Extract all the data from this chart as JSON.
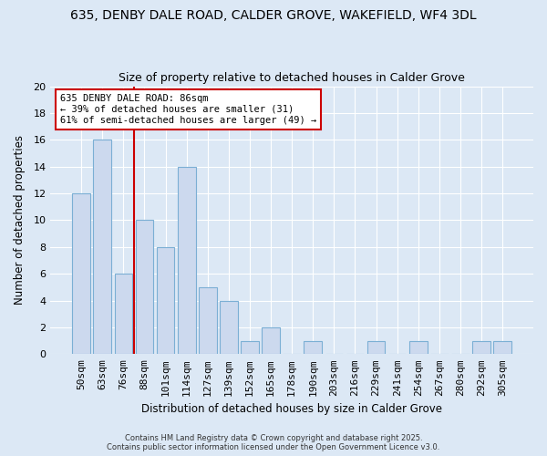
{
  "title": "635, DENBY DALE ROAD, CALDER GROVE, WAKEFIELD, WF4 3DL",
  "subtitle": "Size of property relative to detached houses in Calder Grove",
  "xlabel": "Distribution of detached houses by size in Calder Grove",
  "ylabel": "Number of detached properties",
  "categories": [
    "50sqm",
    "63sqm",
    "76sqm",
    "88sqm",
    "101sqm",
    "114sqm",
    "127sqm",
    "139sqm",
    "152sqm",
    "165sqm",
    "178sqm",
    "190sqm",
    "203sqm",
    "216sqm",
    "229sqm",
    "241sqm",
    "254sqm",
    "267sqm",
    "280sqm",
    "292sqm",
    "305sqm"
  ],
  "values": [
    12,
    16,
    6,
    10,
    8,
    14,
    5,
    4,
    1,
    2,
    0,
    1,
    0,
    0,
    1,
    0,
    1,
    0,
    0,
    1,
    1
  ],
  "bar_color": "#ccd9ee",
  "bar_edge_color": "#7bafd4",
  "ylim": [
    0,
    20
  ],
  "yticks": [
    0,
    2,
    4,
    6,
    8,
    10,
    12,
    14,
    16,
    18,
    20
  ],
  "vline_x_index": 3,
  "vline_color": "#cc0000",
  "annotation_title": "635 DENBY DALE ROAD: 86sqm",
  "annotation_line1": "← 39% of detached houses are smaller (31)",
  "annotation_line2": "61% of semi-detached houses are larger (49) →",
  "annotation_box_color": "#ffffff",
  "annotation_box_edge": "#cc0000",
  "bg_color": "#dce8f5",
  "grid_color": "#c0d0e8",
  "footer1": "Contains HM Land Registry data © Crown copyright and database right 2025.",
  "footer2": "Contains public sector information licensed under the Open Government Licence v3.0.",
  "title_fontsize": 10,
  "subtitle_fontsize": 9
}
